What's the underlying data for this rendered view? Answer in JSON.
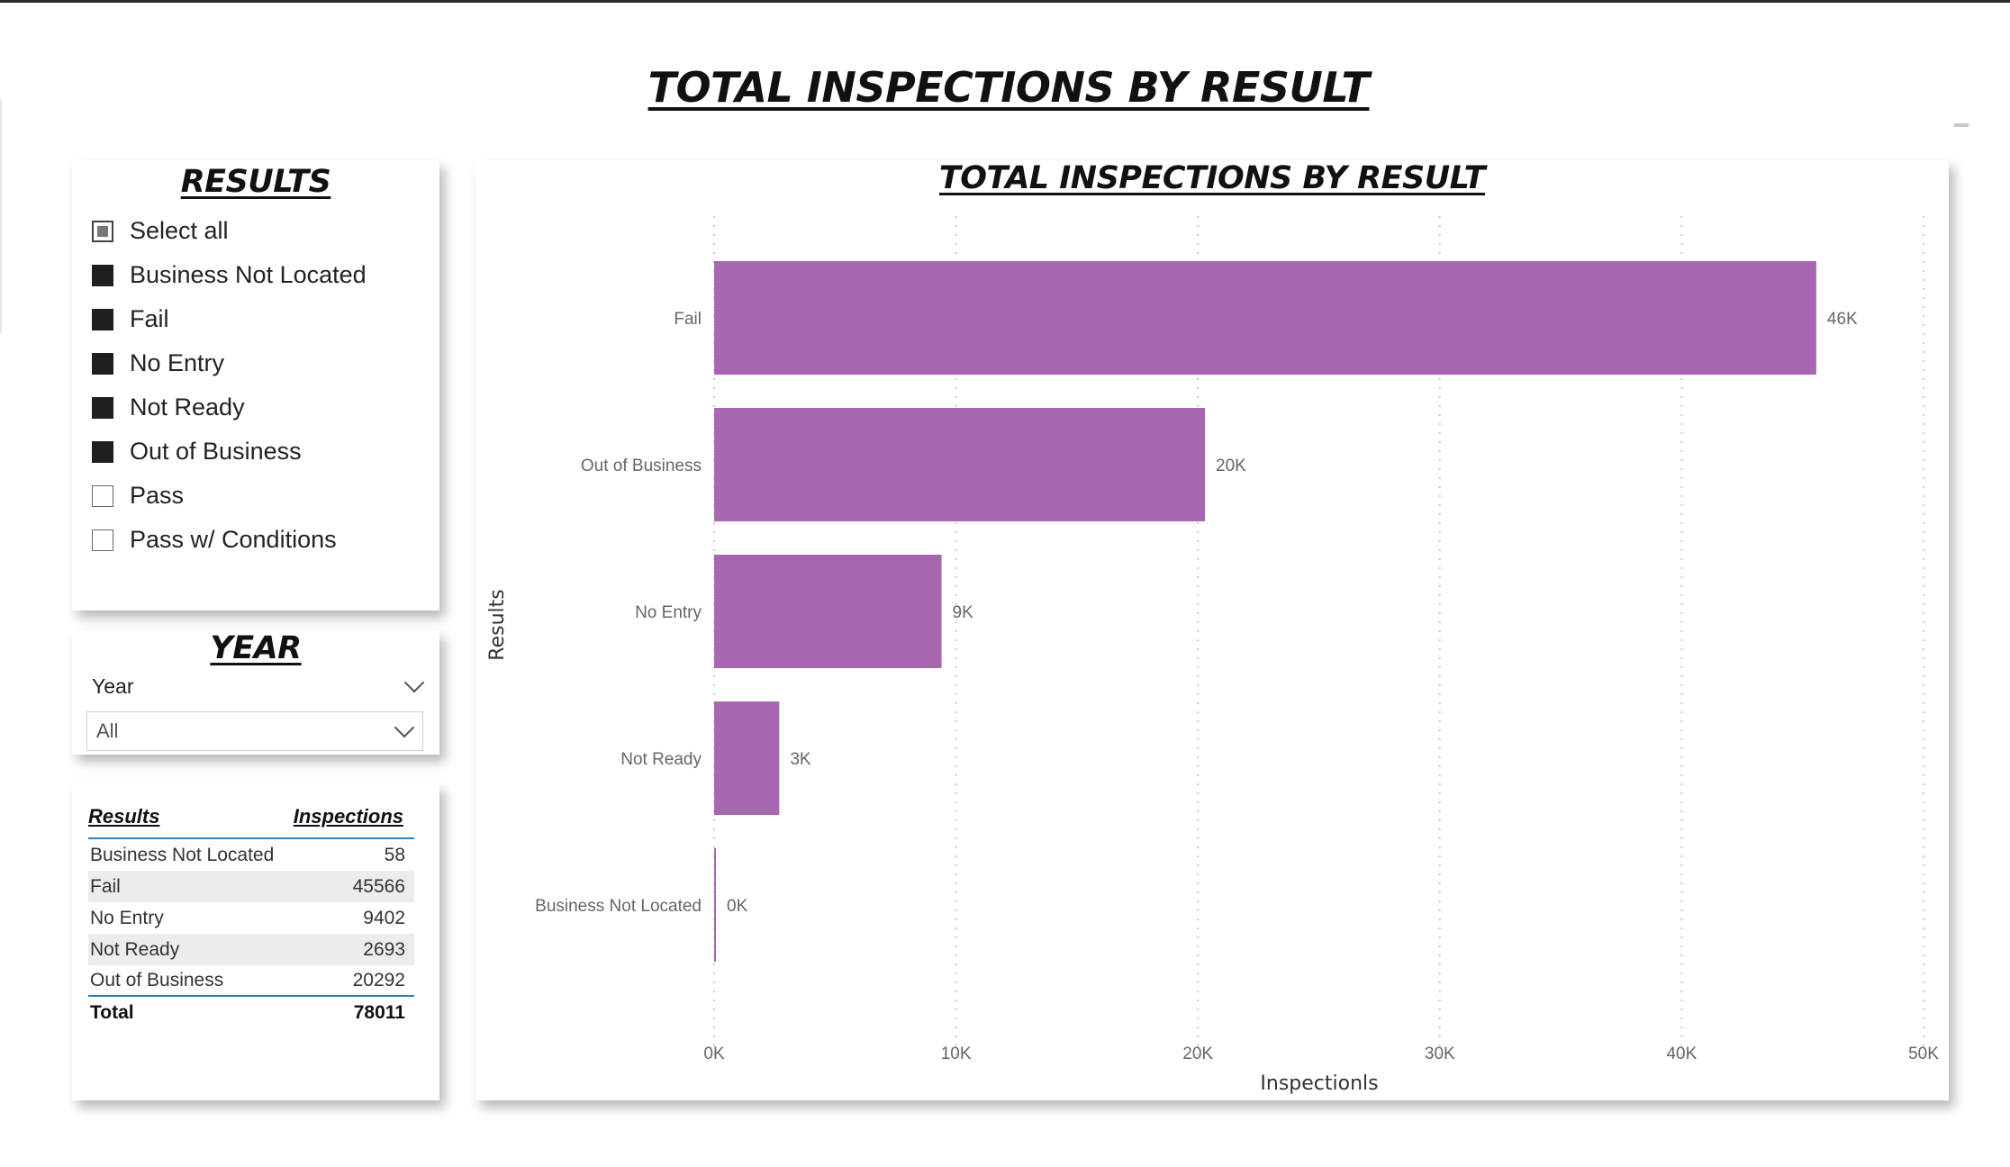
{
  "page_title": "TOTAL INSPECTIONS BY RESULT",
  "results_slicer": {
    "title": "RESULTS",
    "items": [
      {
        "label": "Select all",
        "state": "partial"
      },
      {
        "label": "Business Not Located",
        "state": "checked"
      },
      {
        "label": "Fail",
        "state": "checked"
      },
      {
        "label": "No Entry",
        "state": "checked"
      },
      {
        "label": "Not Ready",
        "state": "checked"
      },
      {
        "label": "Out of Business",
        "state": "checked"
      },
      {
        "label": "Pass",
        "state": "unchecked"
      },
      {
        "label": "Pass w/ Conditions",
        "state": "unchecked"
      }
    ]
  },
  "year_slicer": {
    "title": "YEAR",
    "field_label": "Year",
    "selected": "All"
  },
  "table": {
    "headers": [
      "Results",
      "Inspections"
    ],
    "rows": [
      [
        "Business Not Located",
        "58"
      ],
      [
        "Fail",
        "45566"
      ],
      [
        "No Entry",
        "9402"
      ],
      [
        "Not Ready",
        "2693"
      ],
      [
        "Out of Business",
        "20292"
      ]
    ],
    "total": [
      "Total",
      "78011"
    ]
  },
  "chart_data": {
    "type": "bar",
    "orientation": "horizontal",
    "title": "TOTAL INSPECTIONS BY RESULT",
    "xlabel": "Inspectionls",
    "ylabel": "Results",
    "categories": [
      "Fail",
      "Out of Business",
      "No Entry",
      "Not Ready",
      "Business Not Located"
    ],
    "values": [
      45566,
      20292,
      9402,
      2693,
      58
    ],
    "data_labels": [
      "46K",
      "20K",
      "9K",
      "3K",
      "0K"
    ],
    "xlim": [
      0,
      50000
    ],
    "x_ticks": [
      0,
      10000,
      20000,
      30000,
      40000,
      50000
    ],
    "x_tick_labels": [
      "0K",
      "10K",
      "20K",
      "30K",
      "40K",
      "50K"
    ],
    "grid": "vertical dotted",
    "bar_color": "#a667b0"
  }
}
